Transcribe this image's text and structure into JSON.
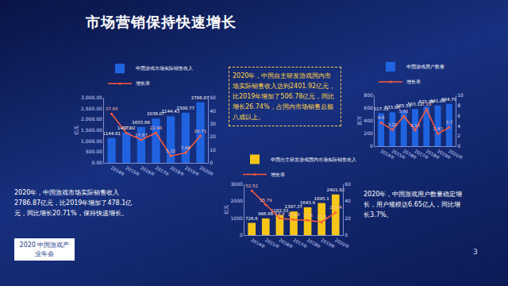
{
  "slide": {
    "title": "市场营销保持快速增长",
    "texts": [
      "2020年，中国游戏市场实际销售收入2786.87亿元，比2019年增加了478.1亿元，同比增长20.71%，保持快速增长。",
      "2020年，中国自主研发游戏国内市场实际销售收入达到2401.92亿元，比2019年增加了506.78亿元，同比增长26.74%，占国内市场销售总额八成以上。",
      "2020年，中国游戏用户数量稳定增长，用户规模达6.65亿人，同比增长3.7%。"
    ],
    "podium": "2020 中国游戏产业年会",
    "page": "3"
  },
  "chart_data": [
    {
      "type": "bar",
      "categories": [
        "2014年",
        "2015年",
        "2016年",
        "2017年",
        "2018年",
        "2019年",
        "2020年"
      ],
      "y_label": "亿元",
      "series": [
        {
          "name": "中国游戏市场实际销售收入",
          "type": "bar",
          "color": "#1f63e0",
          "values": [
            1144.81,
            1407.02,
            1655.66,
            2036.07,
            2144.43,
            2308.77,
            2786.87
          ]
        },
        {
          "name": "增长率",
          "type": "line",
          "axis": "y2",
          "color": "#ff5a3c",
          "values": [
            37.65,
            22.9,
            17.67,
            22.98,
            5.32,
            7.66,
            20.71
          ]
        }
      ],
      "ylim": [
        0,
        3000
      ],
      "yticks": [
        {
          "value": 0,
          "label": "0.00"
        },
        {
          "value": 500,
          "label": "500.00"
        },
        {
          "value": 1000,
          "label": "1,000.00"
        },
        {
          "value": 1500,
          "label": "1,500.00"
        },
        {
          "value": 2000,
          "label": "2,000.00"
        },
        {
          "value": 2500,
          "label": "2,500.00"
        },
        {
          "value": 3000,
          "label": "3,000.00"
        }
      ],
      "y2lim": [
        0,
        50
      ],
      "y2ticks": [
        0,
        10,
        20,
        30,
        40,
        50
      ],
      "data_labels": true,
      "legend": "top",
      "grid": false
    },
    {
      "type": "bar",
      "categories": [
        "2014年",
        "2015年",
        "2016年",
        "2017年",
        "2018年",
        "2019年",
        "2020年"
      ],
      "y_label": "亿元",
      "series": [
        {
          "name": "中国自主研发游戏国内市场实际销售收入",
          "type": "bar",
          "color": "#f5c518",
          "values": [
            726.6,
            986.66,
            1182.51,
            1397.37,
            1643.9,
            1895.1,
            2401.92
          ]
        },
        {
          "name": "增长率",
          "type": "line",
          "axis": "y2",
          "color": "#ff5a3c",
          "values": [
            52.52,
            35.79,
            19.9,
            18.18,
            17.6,
            15.3,
            26.74
          ]
        }
      ],
      "ylim": [
        0,
        3000
      ],
      "yticks": [
        0,
        1000,
        2000,
        3000
      ],
      "y2lim": [
        0,
        60
      ],
      "y2ticks": [
        0,
        20,
        40,
        60
      ],
      "data_labels": true,
      "legend": "top",
      "grid": false
    },
    {
      "type": "bar",
      "categories": [
        "2014年",
        "2015年",
        "2016年",
        "2017年",
        "2018年",
        "2019年",
        "2020年"
      ],
      "y_label": "百万",
      "series": [
        {
          "name": "中国游戏用户数量",
          "type": "bar",
          "color": "#1f63e0",
          "values": [
            517.31,
            533.96,
            565.51,
            583.12,
            625.96,
            641.06,
            664.79
          ]
        },
        {
          "name": "增长率",
          "type": "line",
          "axis": "y2",
          "color": "#ff5a3c",
          "values": [
            4.6,
            3.22,
            5.91,
            3.13,
            7.28,
            2.43,
            3.7
          ]
        }
      ],
      "ylim": [
        0,
        800
      ],
      "yticks": [
        0,
        200,
        400,
        600,
        800
      ],
      "y2lim": [
        0,
        10
      ],
      "y2ticks": [
        0,
        2,
        4,
        6,
        8,
        10
      ],
      "data_labels": true,
      "legend": "top",
      "grid": false
    }
  ]
}
